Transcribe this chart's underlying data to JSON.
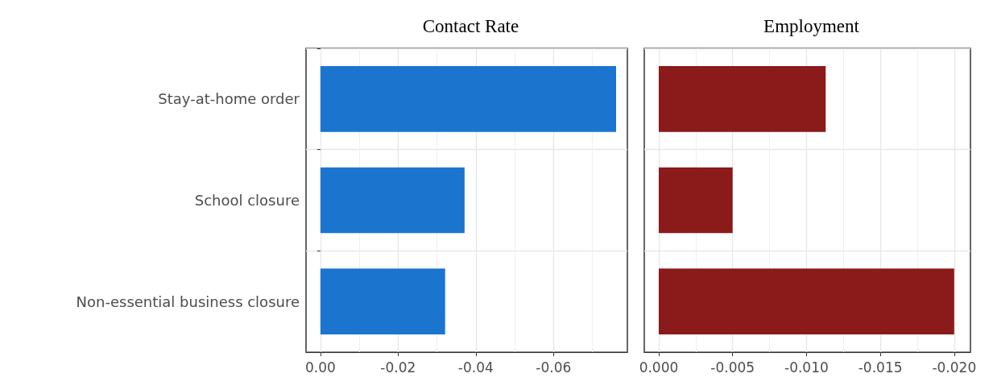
{
  "chart_data": [
    {
      "type": "bar",
      "orientation": "horizontal",
      "title": "Contact Rate",
      "categories": [
        "Stay-at-home order",
        "School closure",
        "Non-essential business closure"
      ],
      "values": [
        -0.0761,
        -0.0371,
        -0.0321
      ],
      "color": "#1b75cf",
      "xlim": [
        0.0037,
        -0.079
      ],
      "xticks": [
        {
          "value": 0,
          "label": "0.00"
        },
        {
          "value": -0.02,
          "label": "-0.02"
        },
        {
          "value": -0.04,
          "label": "-0.04"
        },
        {
          "value": -0.06,
          "label": "-0.06"
        }
      ],
      "grid": true
    },
    {
      "type": "bar",
      "orientation": "horizontal",
      "title": "Employment",
      "categories": [
        null,
        null,
        null
      ],
      "values": [
        -0.0113,
        -0.005,
        -0.02
      ],
      "color": "#8b1a1a",
      "xlim": [
        0.00098,
        -0.0211
      ],
      "xticks": [
        {
          "value": 0,
          "label": "0.000"
        },
        {
          "value": -0.005,
          "label": "-0.005"
        },
        {
          "value": -0.01,
          "label": "-0.010"
        },
        {
          "value": -0.015,
          "label": "-0.015"
        },
        {
          "value": -0.02,
          "label": "-0.020"
        }
      ],
      "grid": true,
      "tick_labels": "x"
    }
  ]
}
